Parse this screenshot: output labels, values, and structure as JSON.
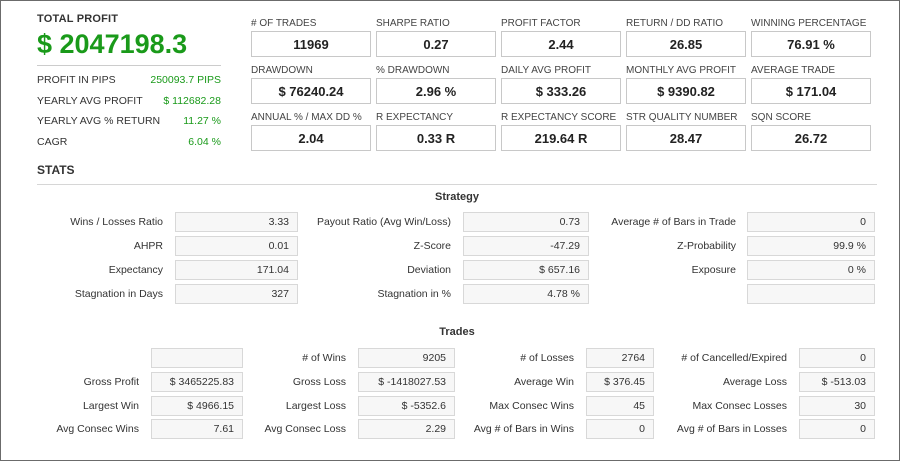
{
  "total_profit": {
    "label": "TOTAL PROFIT",
    "value": "$ 2047198.3",
    "rows": [
      {
        "key": "PROFIT IN PIPS",
        "value": "250093.7 PIPS"
      },
      {
        "key": "YEARLY AVG PROFIT",
        "value": "$ 112682.28"
      },
      {
        "key": "YEARLY AVG % RETURN",
        "value": "11.27 %"
      },
      {
        "key": "CAGR",
        "value": "6.04 %"
      }
    ],
    "accent_color": "#1a9a1a"
  },
  "metrics": [
    {
      "label": "# OF TRADES",
      "value": "11969"
    },
    {
      "label": "SHARPE RATIO",
      "value": "0.27"
    },
    {
      "label": "PROFIT FACTOR",
      "value": "2.44"
    },
    {
      "label": "RETURN / DD RATIO",
      "value": "26.85"
    },
    {
      "label": "WINNING PERCENTAGE",
      "value": "76.91 %"
    },
    {
      "label": "DRAWDOWN",
      "value": "$ 76240.24"
    },
    {
      "label": "% DRAWDOWN",
      "value": "2.96 %"
    },
    {
      "label": "DAILY AVG PROFIT",
      "value": "$ 333.26"
    },
    {
      "label": "MONTHLY AVG PROFIT",
      "value": "$ 9390.82"
    },
    {
      "label": "AVERAGE TRADE",
      "value": "$ 171.04"
    },
    {
      "label": "ANNUAL % / MAX DD %",
      "value": "2.04"
    },
    {
      "label": "R EXPECTANCY",
      "value": "0.33 R"
    },
    {
      "label": "R EXPECTANCY SCORE",
      "value": "219.64 R"
    },
    {
      "label": "STR QUALITY NUMBER",
      "value": "28.47"
    },
    {
      "label": "SQN SCORE",
      "value": "26.72"
    }
  ],
  "stats": {
    "title": "STATS",
    "strategy": {
      "title": "Strategy",
      "rows": [
        [
          {
            "label": "Wins / Losses Ratio",
            "value": "3.33"
          },
          {
            "label": "Payout Ratio (Avg Win/Loss)",
            "value": "0.73"
          },
          {
            "label": "Average # of Bars in Trade",
            "value": "0"
          }
        ],
        [
          {
            "label": "AHPR",
            "value": "0.01"
          },
          {
            "label": "Z-Score",
            "value": "-47.29"
          },
          {
            "label": "Z-Probability",
            "value": "99.9 %"
          }
        ],
        [
          {
            "label": "Expectancy",
            "value": "171.04"
          },
          {
            "label": "Deviation",
            "value": "$ 657.16"
          },
          {
            "label": "Exposure",
            "value": "0 %"
          }
        ],
        [
          {
            "label": "Stagnation in Days",
            "value": "327"
          },
          {
            "label": "Stagnation in %",
            "value": "4.78 %"
          },
          {
            "label": "",
            "value": ""
          }
        ]
      ]
    },
    "trades": {
      "title": "Trades",
      "rows": [
        [
          {
            "label": "",
            "value": ""
          },
          {
            "label": "# of Wins",
            "value": "9205"
          },
          {
            "label": "# of Losses",
            "value": "2764"
          },
          {
            "label": "# of Cancelled/Expired",
            "value": "0"
          }
        ],
        [
          {
            "label": "Gross Profit",
            "value": "$ 3465225.83"
          },
          {
            "label": "Gross Loss",
            "value": "$ -1418027.53"
          },
          {
            "label": "Average Win",
            "value": "$ 376.45"
          },
          {
            "label": "Average Loss",
            "value": "$ -513.03"
          }
        ],
        [
          {
            "label": "Largest Win",
            "value": "$ 4966.15"
          },
          {
            "label": "Largest Loss",
            "value": "$ -5352.6"
          },
          {
            "label": "Max Consec Wins",
            "value": "45"
          },
          {
            "label": "Max Consec Losses",
            "value": "30"
          }
        ],
        [
          {
            "label": "Avg Consec Wins",
            "value": "7.61"
          },
          {
            "label": "Avg Consec Loss",
            "value": "2.29"
          },
          {
            "label": "Avg # of Bars in Wins",
            "value": "0"
          },
          {
            "label": "Avg # of Bars in Losses",
            "value": "0"
          }
        ]
      ]
    }
  }
}
